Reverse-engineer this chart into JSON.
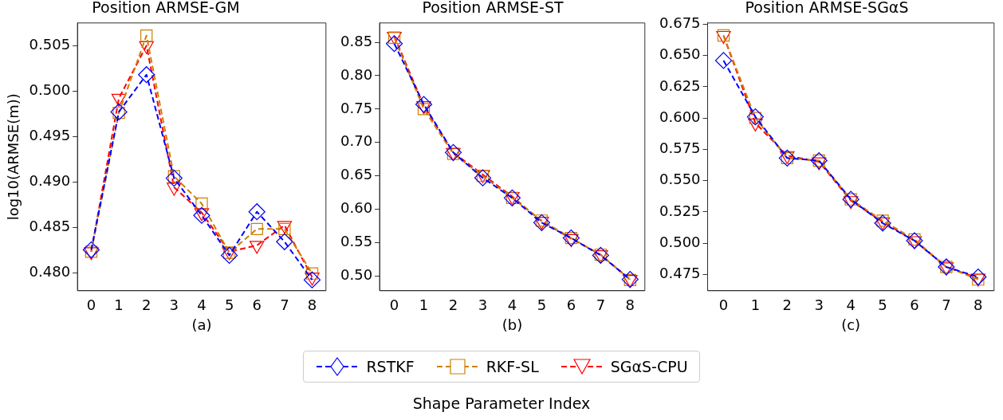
{
  "chart_data": [
    {
      "type": "line",
      "title": "Position ARMSE-GM",
      "xlabel": "(a)",
      "ylabel": "log10(ARMSE(m))",
      "categories": [
        "0",
        "1",
        "2",
        "3",
        "4",
        "5",
        "6",
        "7",
        "8"
      ],
      "ylim": [
        0.478,
        0.5075
      ],
      "yticks": [
        {
          "value": 0.48,
          "label": "0.480"
        },
        {
          "value": 0.485,
          "label": "0.485"
        },
        {
          "value": 0.49,
          "label": "0.490"
        },
        {
          "value": 0.495,
          "label": "0.495"
        },
        {
          "value": 0.5,
          "label": "0.500"
        },
        {
          "value": 0.505,
          "label": "0.505"
        }
      ],
      "grid": false,
      "line_style": "dashed",
      "legend": "bottom",
      "annotations": [
        "Shape Parameter Index"
      ],
      "series": [
        {
          "name": "RSTKF",
          "color": "#0000ff",
          "marker": "diamond",
          "values": [
            0.4825,
            0.4977,
            0.5018,
            0.4904,
            0.4863,
            0.4819,
            0.4867,
            0.4834,
            0.4792
          ]
        },
        {
          "name": "RKF-SL",
          "color": "#cc8000",
          "marker": "square",
          "values": [
            0.4823,
            0.4976,
            0.5061,
            0.4906,
            0.4876,
            0.4822,
            0.4848,
            0.4848,
            0.4799
          ]
        },
        {
          "name": "SGαS-CPU",
          "color": "#ff0000",
          "marker": "triangle",
          "values": [
            0.4823,
            0.4992,
            0.505,
            0.4894,
            0.4866,
            0.4823,
            0.483,
            0.4852,
            0.4795
          ]
        }
      ]
    },
    {
      "type": "line",
      "title": "Position ARMSE-ST",
      "xlabel": "(b)",
      "categories": [
        "0",
        "1",
        "2",
        "3",
        "4",
        "5",
        "6",
        "7",
        "8"
      ],
      "ylim": [
        0.478,
        0.879
      ],
      "yticks": [
        {
          "value": 0.5,
          "label": "0.50"
        },
        {
          "value": 0.55,
          "label": "0.55"
        },
        {
          "value": 0.6,
          "label": "0.60"
        },
        {
          "value": 0.65,
          "label": "0.65"
        },
        {
          "value": 0.7,
          "label": "0.70"
        },
        {
          "value": 0.75,
          "label": "0.75"
        },
        {
          "value": 0.8,
          "label": "0.80"
        },
        {
          "value": 0.85,
          "label": "0.85"
        }
      ],
      "grid": false,
      "line_style": "dashed",
      "series": [
        {
          "color": "#0000ff",
          "marker": "diamond",
          "values": [
            0.848,
            0.757,
            0.685,
            0.647,
            0.617,
            0.58,
            0.557,
            0.531,
            0.495
          ]
        },
        {
          "color": "#cc8000",
          "marker": "square",
          "values": [
            0.857,
            0.75,
            0.683,
            0.65,
            0.617,
            0.583,
            0.557,
            0.532,
            0.494
          ]
        },
        {
          "color": "#ff0000",
          "marker": "triangle",
          "values": [
            0.859,
            0.755,
            0.685,
            0.652,
            0.619,
            0.582,
            0.556,
            0.532,
            0.495
          ]
        }
      ]
    },
    {
      "type": "line",
      "title": "Position ARMSE-SGαS",
      "xlabel": "(c)",
      "categories": [
        "0",
        "1",
        "2",
        "3",
        "4",
        "5",
        "6",
        "7",
        "8"
      ],
      "ylim": [
        0.462,
        0.676
      ],
      "yticks": [
        {
          "value": 0.475,
          "label": "0.475"
        },
        {
          "value": 0.5,
          "label": "0.500"
        },
        {
          "value": 0.525,
          "label": "0.525"
        },
        {
          "value": 0.55,
          "label": "0.550"
        },
        {
          "value": 0.575,
          "label": "0.575"
        },
        {
          "value": 0.6,
          "label": "0.600"
        },
        {
          "value": 0.625,
          "label": "0.625"
        },
        {
          "value": 0.65,
          "label": "0.650"
        },
        {
          "value": 0.675,
          "label": "0.675"
        }
      ],
      "grid": false,
      "line_style": "dashed",
      "series": [
        {
          "color": "#0000ff",
          "marker": "diamond",
          "values": [
            0.646,
            0.601,
            0.568,
            0.566,
            0.535,
            0.516,
            0.502,
            0.481,
            0.473
          ]
        },
        {
          "color": "#cc8000",
          "marker": "square",
          "values": [
            0.666,
            0.6,
            0.568,
            0.566,
            0.535,
            0.518,
            0.503,
            0.481,
            0.471
          ]
        },
        {
          "color": "#ff0000",
          "marker": "triangle",
          "values": [
            0.666,
            0.596,
            0.57,
            0.565,
            0.534,
            0.517,
            0.502,
            0.481,
            0.472
          ]
        }
      ]
    }
  ]
}
